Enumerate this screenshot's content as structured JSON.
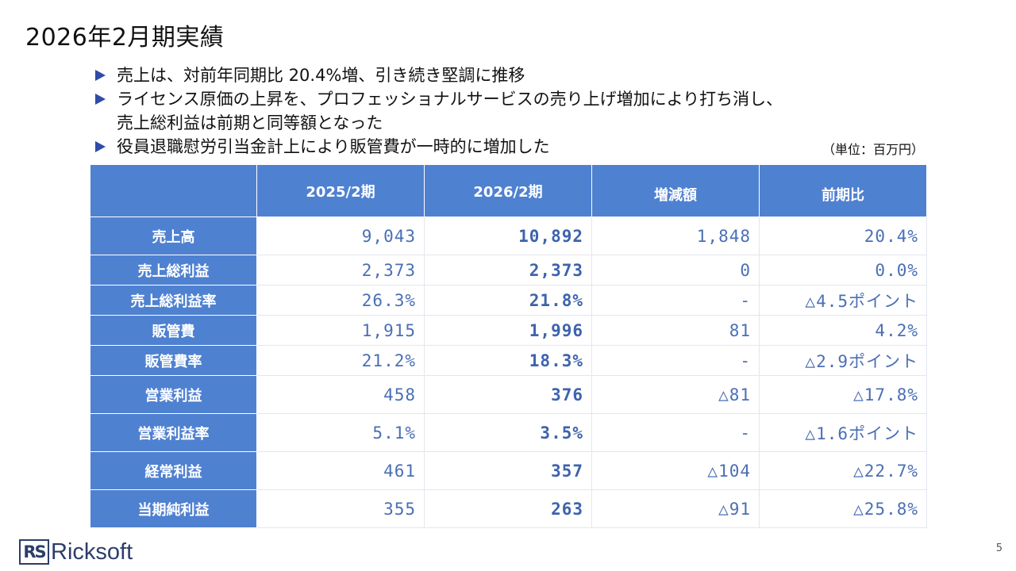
{
  "slide": {
    "title": "2026年2月期実績",
    "page_number": "5"
  },
  "bullets": [
    {
      "line1": "売上は、対前年同期比 20.4%増、引き続き堅調に推移",
      "line2": ""
    },
    {
      "line1": "ライセンス原価の上昇を、プロフェッショナルサービスの売り上げ増加により打ち消し、",
      "line2": "売上総利益は前期と同等額となった"
    },
    {
      "line1": "役員退職慰労引当金計上により販管費が一時的に増加した",
      "line2": ""
    }
  ],
  "unit_note": "（単位：百万円）",
  "table": {
    "headers": [
      "",
      "2025/2期",
      "2026/2期",
      "増減額",
      "前期比"
    ],
    "rows": [
      {
        "label": "売上高",
        "prior": "9,043",
        "current": "10,892",
        "change": "1,848",
        "yoy": "20.4%"
      },
      {
        "label": "売上総利益",
        "prior": "2,373",
        "current": "2,373",
        "change": "0",
        "yoy": "0.0%"
      },
      {
        "label": "売上総利益率",
        "prior": "26.3%",
        "current": "21.8%",
        "change": "-",
        "yoy": "△4.5ポイント"
      },
      {
        "label": "販管費",
        "prior": "1,915",
        "current": "1,996",
        "change": "81",
        "yoy": "4.2%"
      },
      {
        "label": "販管費率",
        "prior": "21.2%",
        "current": "18.3%",
        "change": "-",
        "yoy": "△2.9ポイント"
      },
      {
        "label": "営業利益",
        "prior": "458",
        "current": "376",
        "change": "△81",
        "yoy": "△17.8%"
      },
      {
        "label": "営業利益率",
        "prior": "5.1%",
        "current": "3.5%",
        "change": "-",
        "yoy": "△1.6ポイント"
      },
      {
        "label": "経常利益",
        "prior": "461",
        "current": "357",
        "change": "△104",
        "yoy": "△22.7%"
      },
      {
        "label": "当期純利益",
        "prior": "355",
        "current": "263",
        "change": "△91",
        "yoy": "△25.8%"
      }
    ]
  },
  "logo": {
    "mark": "RS",
    "text": "Ricksoft"
  },
  "colors": {
    "header_fill": "#4f81d1",
    "value_text": "#4a6fb5",
    "bullet_marker": "#2f4da8",
    "logo": "#2d3d6b"
  }
}
